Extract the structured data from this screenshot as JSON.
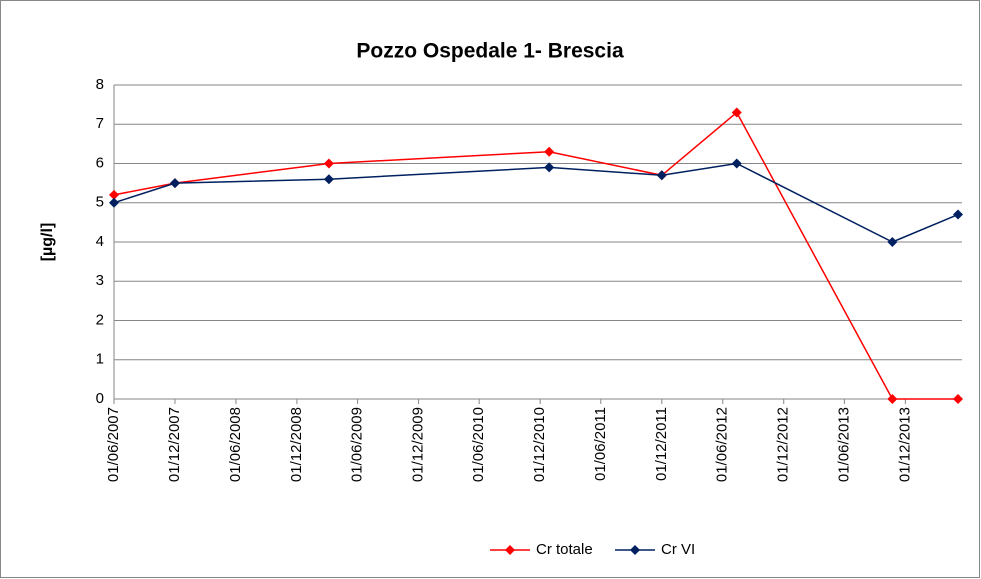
{
  "chart_data": {
    "type": "line",
    "title": "Pozzo Ospedale 1- Brescia",
    "y_label": "[µg/l]",
    "x": [
      "2007-06-01",
      "2007-12-01",
      "2009-03-07",
      "2010-12-28",
      "2011-12-01",
      "2012-07-13",
      "2013-10-23",
      "2014-05-08"
    ],
    "series": [
      {
        "name": "Cr totale",
        "color": "#ff0000",
        "values": [
          5.2,
          5.5,
          6.0,
          6.3,
          5.7,
          7.3,
          0,
          0
        ]
      },
      {
        "name": "Cr VI",
        "color": "#002060",
        "values": [
          5.0,
          5.5,
          5.6,
          5.9,
          5.7,
          6.0,
          4.0,
          4.7
        ]
      }
    ],
    "xlim": [
      "2007-06-01",
      "2014-05-20"
    ],
    "xticks": [
      {
        "value": "2007-06-01",
        "label": "01/06/2007"
      },
      {
        "value": "2007-12-01",
        "label": "01/12/2007"
      },
      {
        "value": "2008-06-01",
        "label": "01/06/2008"
      },
      {
        "value": "2008-12-01",
        "label": "01/12/2008"
      },
      {
        "value": "2009-06-01",
        "label": "01/06/2009"
      },
      {
        "value": "2009-12-01",
        "label": "01/12/2009"
      },
      {
        "value": "2010-06-01",
        "label": "01/06/2010"
      },
      {
        "value": "2010-12-01",
        "label": "01/12/2010"
      },
      {
        "value": "2011-06-01",
        "label": "01/06/2011"
      },
      {
        "value": "2011-12-01",
        "label": "01/12/2011"
      },
      {
        "value": "2012-06-01",
        "label": "01/06/2012"
      },
      {
        "value": "2012-12-01",
        "label": "01/12/2012"
      },
      {
        "value": "2013-06-01",
        "label": "01/06/2013"
      },
      {
        "value": "2013-12-01",
        "label": "01/12/2013"
      }
    ],
    "ylim": [
      0,
      8
    ],
    "yticks": [
      0,
      1,
      2,
      3,
      4,
      5,
      6,
      7,
      8
    ],
    "grid": true,
    "legend": "bottom"
  }
}
